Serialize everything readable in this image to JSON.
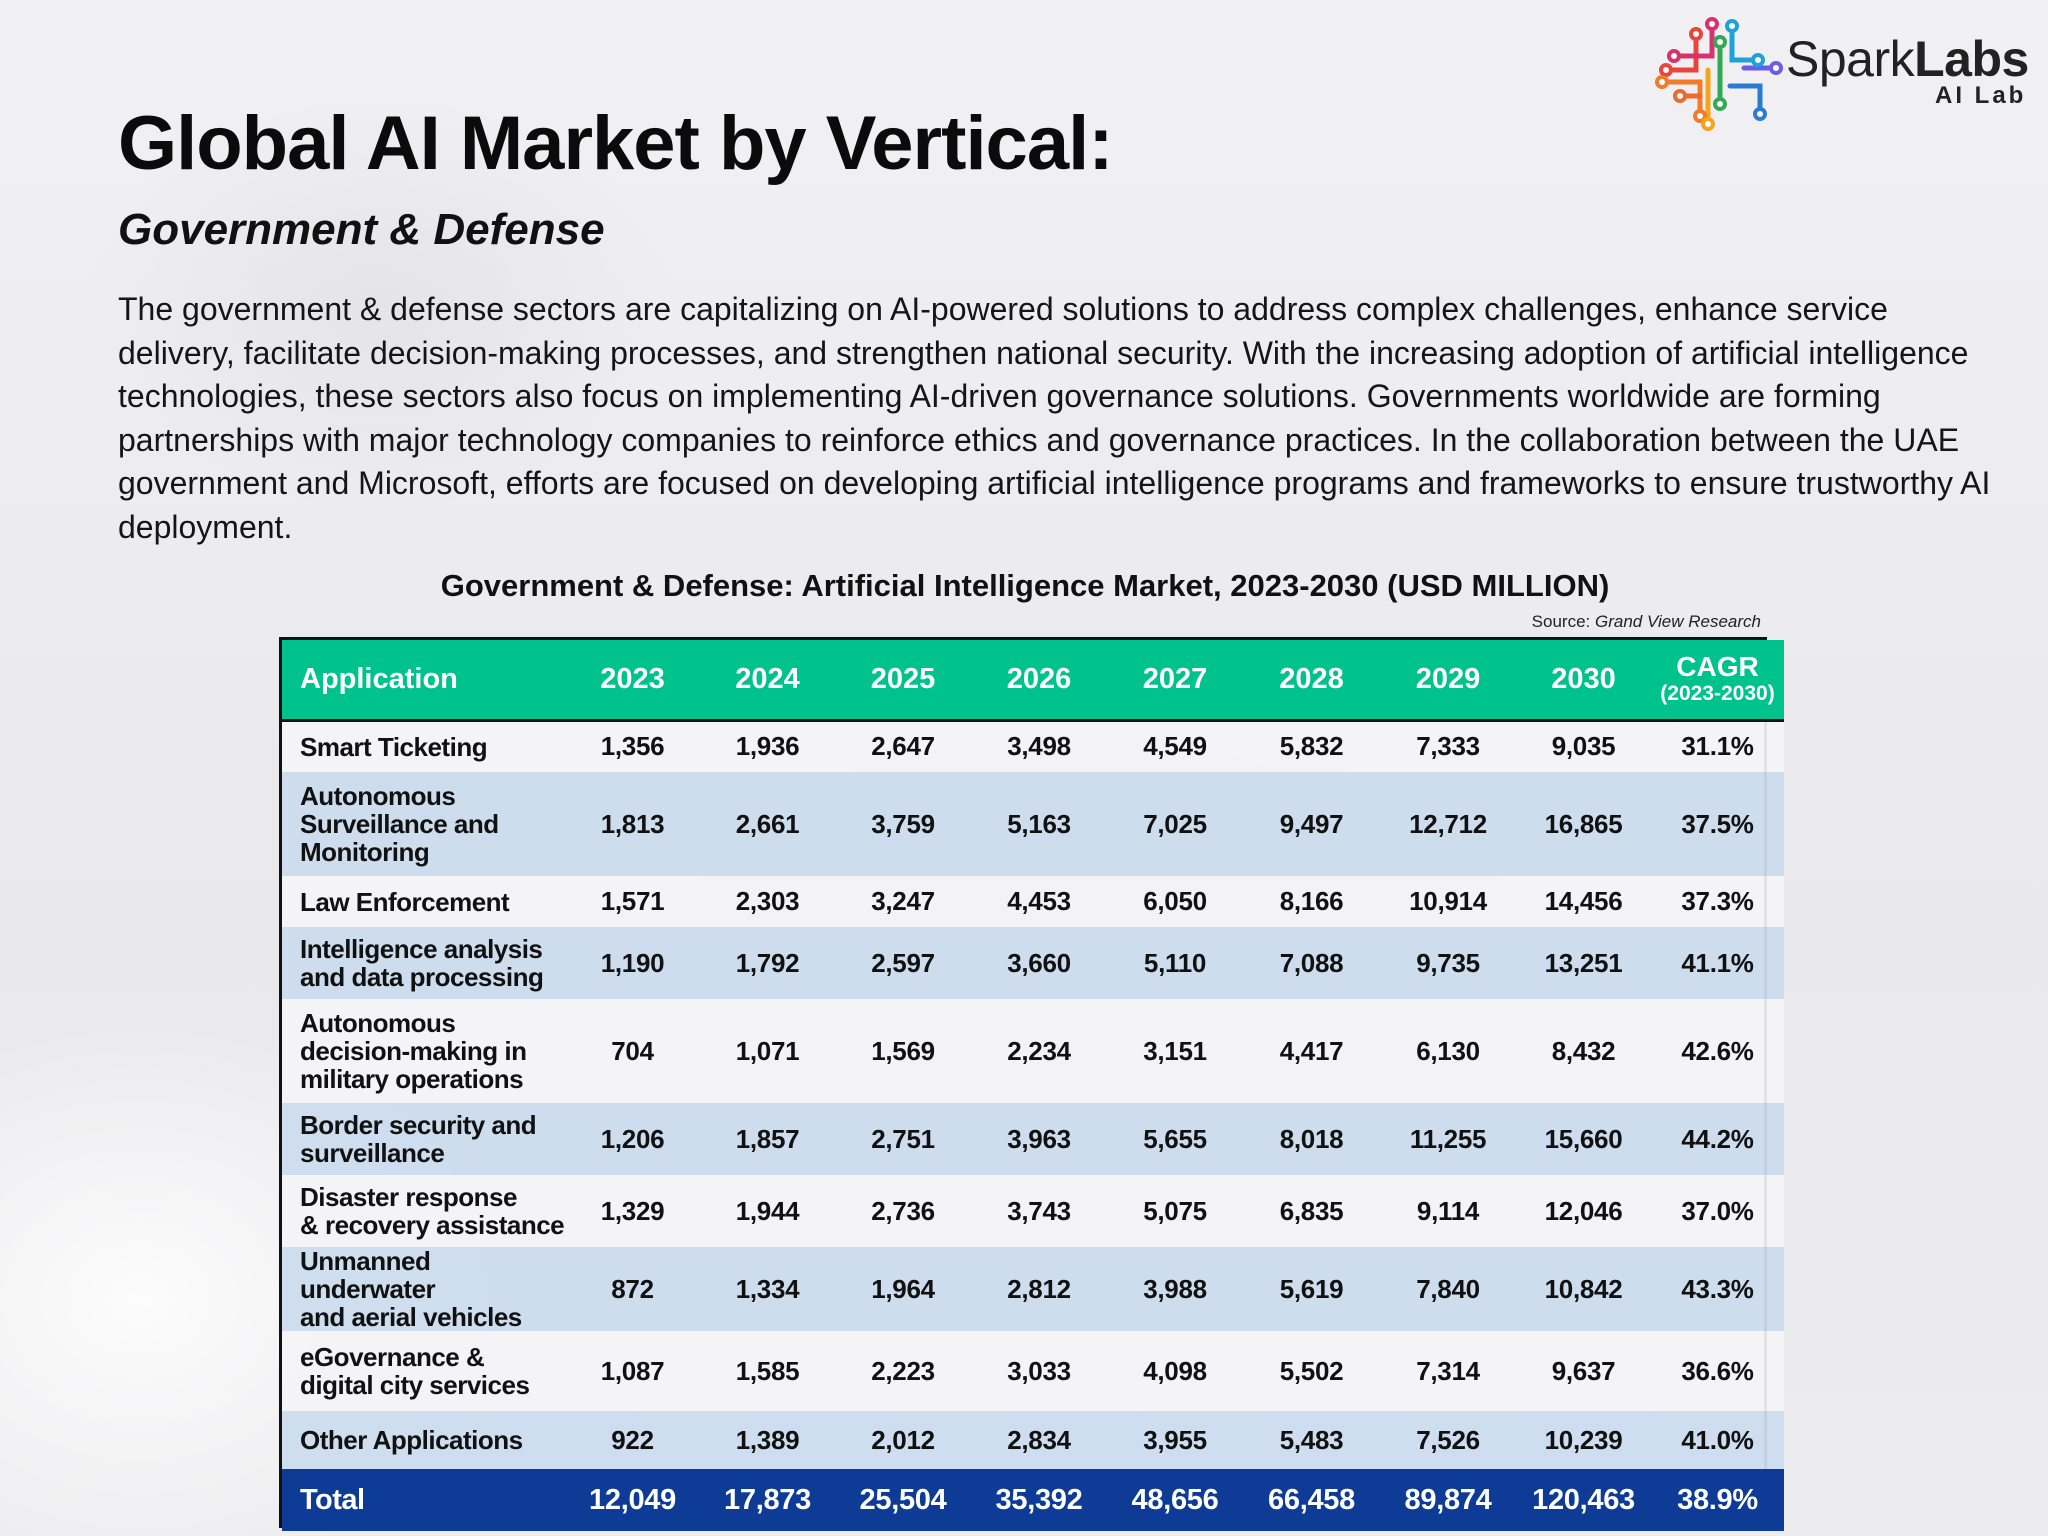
{
  "logo": {
    "name_regular": "Spark",
    "name_bold": "Labs",
    "sub": "AI Lab"
  },
  "title": "Global AI Market by Vertical:",
  "subtitle": "Government & Defense",
  "intro": "The government & defense sectors are capitalizing on AI-powered solutions to address complex challenges, enhance service delivery, facilitate decision-making processes, and strengthen national security. With the increasing adoption of artificial intelligence technologies, these sectors also focus on implementing AI-driven governance solutions. Governments worldwide are forming partnerships with major technology companies to reinforce ethics and governance practices. In the collaboration between the UAE government and Microsoft, efforts are focused on developing artificial intelligence programs and frameworks to ensure trustworthy AI deployment.",
  "colors": {
    "header": "#00c28d",
    "row_light": "#f4f4f6",
    "row_blue": "#ccdcee",
    "total": "#0e3b96"
  },
  "chart_data": {
    "type": "table",
    "title": "Government & Defense: Artificial Intelligence Market, 2023-2030 (USD MILLION)",
    "source_label": "Source:",
    "source": "Grand View Research",
    "columns": [
      "Application",
      "2023",
      "2024",
      "2025",
      "2026",
      "2027",
      "2028",
      "2029",
      "2030"
    ],
    "cagr_label": "CAGR",
    "cagr_sub": "(2023-2030)",
    "rows": [
      {
        "application": [
          "Smart Ticketing"
        ],
        "values": [
          "1,356",
          "1,936",
          "2,647",
          "3,498",
          "4,549",
          "5,832",
          "7,333",
          "9,035"
        ],
        "cagr": "31.1%"
      },
      {
        "application": [
          "Autonomous",
          "Surveillance and",
          "Monitoring"
        ],
        "values": [
          "1,813",
          "2,661",
          "3,759",
          "5,163",
          "7,025",
          "9,497",
          "12,712",
          "16,865"
        ],
        "cagr": "37.5%"
      },
      {
        "application": [
          "Law Enforcement"
        ],
        "values": [
          "1,571",
          "2,303",
          "3,247",
          "4,453",
          "6,050",
          "8,166",
          "10,914",
          "14,456"
        ],
        "cagr": "37.3%"
      },
      {
        "application": [
          "Intelligence analysis",
          "and data processing"
        ],
        "values": [
          "1,190",
          "1,792",
          "2,597",
          "3,660",
          "5,110",
          "7,088",
          "9,735",
          "13,251"
        ],
        "cagr": "41.1%"
      },
      {
        "application": [
          "Autonomous",
          "decision-making in",
          "military operations"
        ],
        "values": [
          "704",
          "1,071",
          "1,569",
          "2,234",
          "3,151",
          "4,417",
          "6,130",
          "8,432"
        ],
        "cagr": "42.6%"
      },
      {
        "application": [
          "Border security and",
          "surveillance"
        ],
        "values": [
          "1,206",
          "1,857",
          "2,751",
          "3,963",
          "5,655",
          "8,018",
          "11,255",
          "15,660"
        ],
        "cagr": "44.2%"
      },
      {
        "application": [
          "Disaster response",
          "& recovery assistance"
        ],
        "values": [
          "1,329",
          "1,944",
          "2,736",
          "3,743",
          "5,075",
          "6,835",
          "9,114",
          "12,046"
        ],
        "cagr": "37.0%"
      },
      {
        "application": [
          "Unmanned underwater",
          "and aerial vehicles"
        ],
        "values": [
          "872",
          "1,334",
          "1,964",
          "2,812",
          "3,988",
          "5,619",
          "7,840",
          "10,842"
        ],
        "cagr": "43.3%"
      },
      {
        "application": [
          "eGovernance &",
          "digital city services"
        ],
        "values": [
          "1,087",
          "1,585",
          "2,223",
          "3,033",
          "4,098",
          "5,502",
          "7,314",
          "9,637"
        ],
        "cagr": "36.6%"
      },
      {
        "application": [
          "Other Applications"
        ],
        "values": [
          "922",
          "1,389",
          "2,012",
          "2,834",
          "3,955",
          "5,483",
          "7,526",
          "10,239"
        ],
        "cagr": "41.0%"
      }
    ],
    "total": {
      "label": "Total",
      "values": [
        "12,049",
        "17,873",
        "25,504",
        "35,392",
        "48,656",
        "66,458",
        "89,874",
        "120,463"
      ],
      "cagr": "38.9%"
    }
  }
}
